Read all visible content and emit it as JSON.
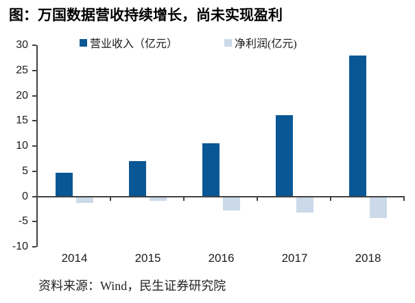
{
  "title": "图：万国数据营收持续增长，尚未实现盈利",
  "source": "资料来源：Wind，民生证券研究院",
  "colors": {
    "revenue_bar": "#0a5795",
    "net_profit_bar": "#cbd9e8",
    "axis": "#404040",
    "text": "#1a1a1a"
  },
  "chart_data": {
    "type": "bar",
    "title": "图：万国数据营收持续增长，尚未实现盈利",
    "categories": [
      "2014",
      "2015",
      "2016",
      "2017",
      "2018"
    ],
    "series": [
      {
        "id": "revenue",
        "name": "营业收入（亿元）",
        "color": "#0a5795",
        "values": [
          4.7,
          7.0,
          10.5,
          16.1,
          27.9
        ]
      },
      {
        "id": "net-profit",
        "name": "净利润(亿元)",
        "color": "#cbd9e8",
        "values": [
          -1.3,
          -0.9,
          -2.8,
          -3.2,
          -4.3
        ]
      }
    ],
    "xlabel": "",
    "ylabel": "",
    "ylim": [
      -10,
      30
    ],
    "yticks": [
      30,
      25,
      20,
      15,
      10,
      5,
      0,
      -5,
      -10
    ],
    "grid": false,
    "legend_position": "top"
  }
}
